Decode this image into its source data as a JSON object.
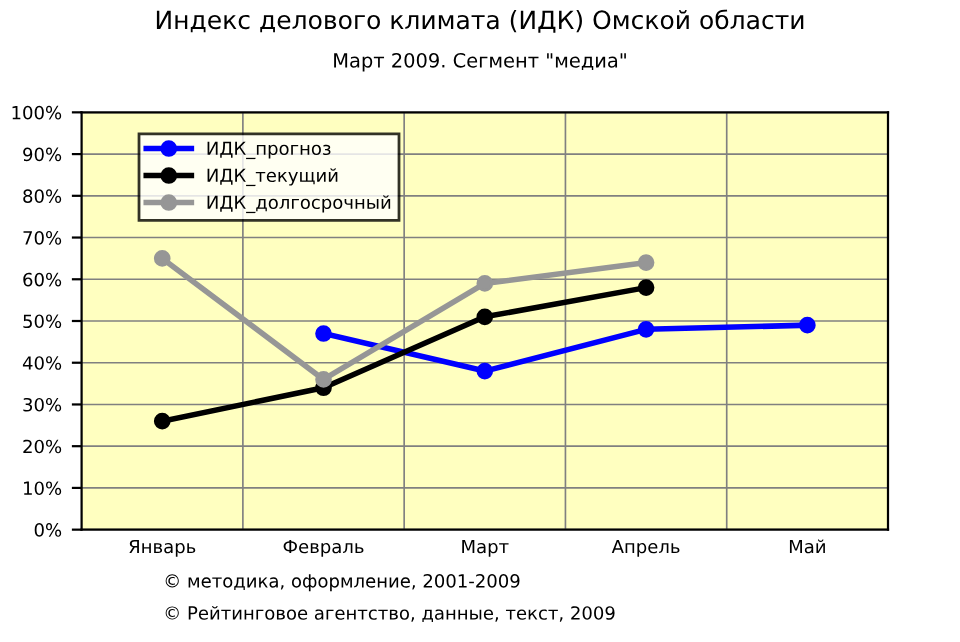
{
  "chart_data": {
    "type": "line",
    "title": "Индекс делового климата (ИДК) Омской области",
    "subtitle": "Март 2009. Сегмент \"медиа\"",
    "categories": [
      "Январь",
      "Февраль",
      "Март",
      "Апрель",
      "Май"
    ],
    "series": [
      {
        "name": "ИДК_прогноз",
        "color": "#0000ff",
        "values": [
          null,
          47,
          38,
          48,
          49
        ]
      },
      {
        "name": "ИДК_текущий",
        "color": "#000000",
        "values": [
          26,
          34,
          51,
          58,
          null
        ]
      },
      {
        "name": "ИДК_долгосрочный",
        "color": "#969696",
        "values": [
          65,
          36,
          59,
          64,
          null
        ]
      }
    ],
    "ylim": [
      0,
      100
    ],
    "yticks": [
      {
        "value": 0,
        "label": "0%"
      },
      {
        "value": 10,
        "label": "10%"
      },
      {
        "value": 20,
        "label": "20%"
      },
      {
        "value": 30,
        "label": "30%"
      },
      {
        "value": 40,
        "label": "40%"
      },
      {
        "value": 50,
        "label": "50%"
      },
      {
        "value": 60,
        "label": "60%"
      },
      {
        "value": 70,
        "label": "70%"
      },
      {
        "value": 80,
        "label": "80%"
      },
      {
        "value": 90,
        "label": "90%"
      },
      {
        "value": 100,
        "label": "100%"
      }
    ],
    "grid": true,
    "legend": "top left",
    "marker": "circle",
    "line_style": "solid",
    "annotations": [
      "© методика, оформление, 2001-2009",
      "© Рейтинговое агентство, данные, текст, 2009"
    ]
  }
}
